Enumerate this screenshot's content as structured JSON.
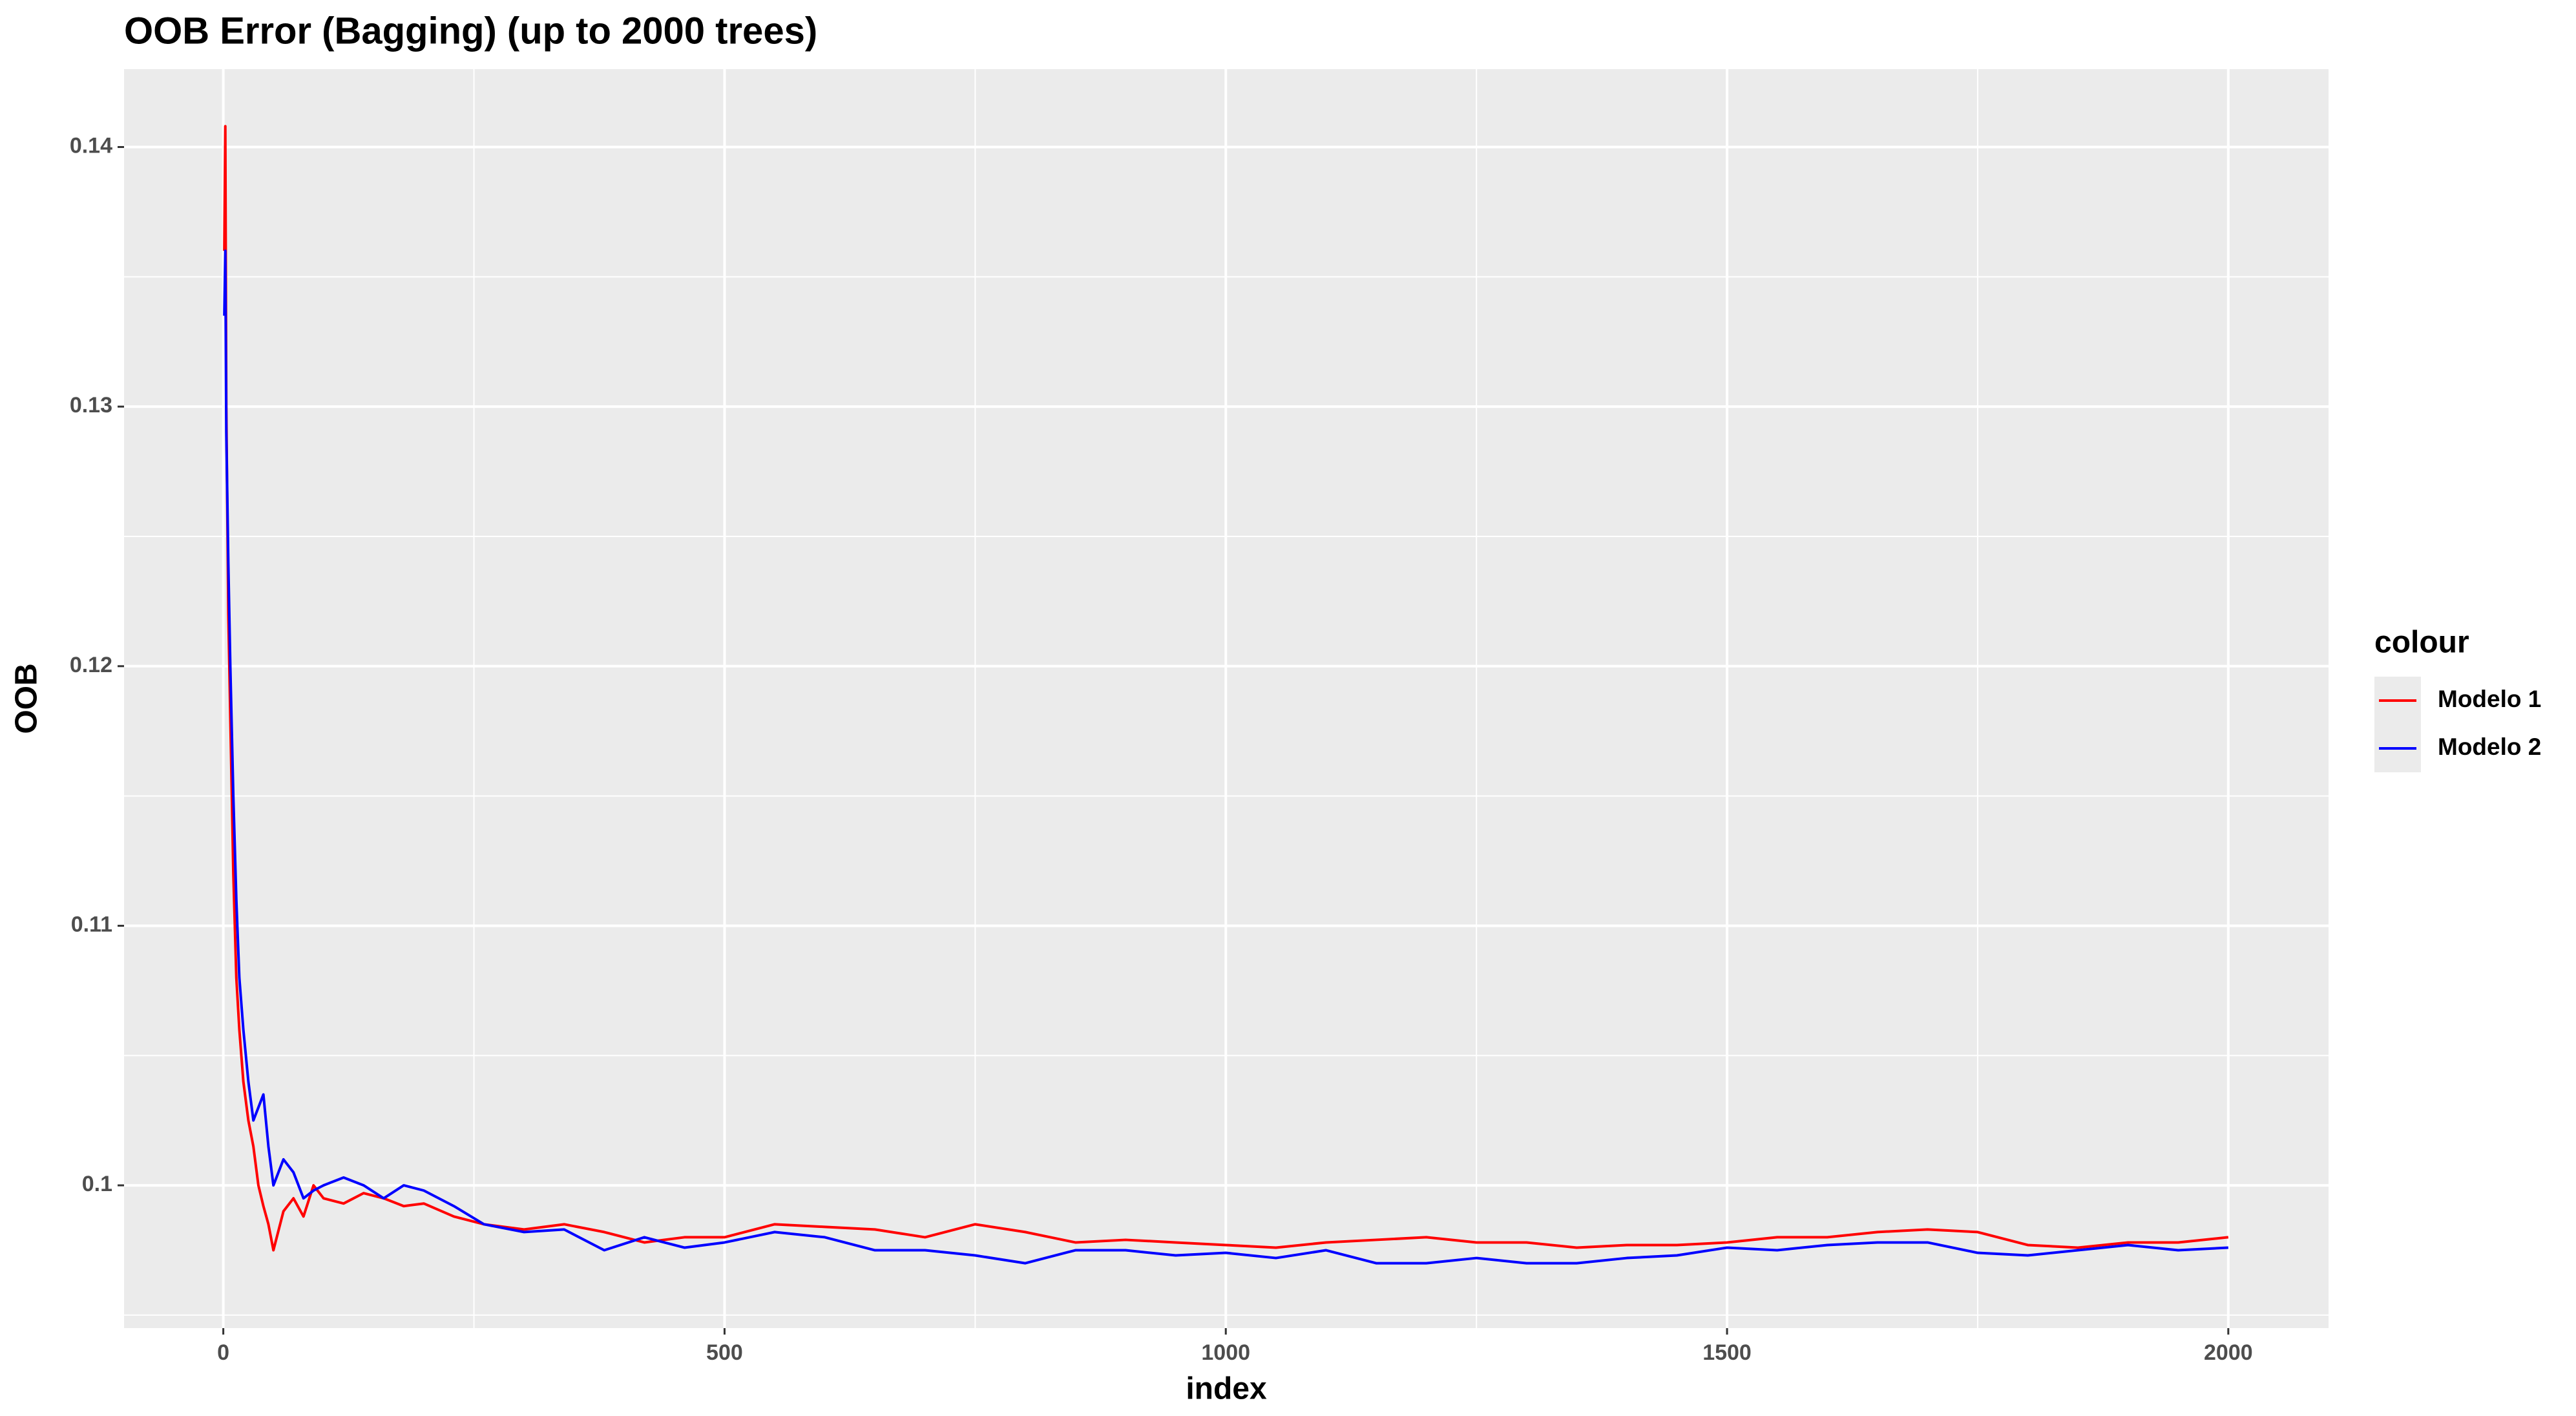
{
  "chart_data": {
    "type": "line",
    "title": "OOB Error (Bagging) (up to 2000 trees)",
    "x_label": "index",
    "y_label": "OOB",
    "legend_title": "colour",
    "legend_position": "right",
    "x": [
      1,
      2,
      3,
      5,
      7,
      10,
      13,
      16,
      20,
      25,
      30,
      35,
      40,
      45,
      50,
      60,
      70,
      80,
      90,
      100,
      120,
      140,
      160,
      180,
      200,
      230,
      260,
      300,
      340,
      380,
      420,
      460,
      500,
      550,
      600,
      650,
      700,
      750,
      800,
      850,
      900,
      950,
      1000,
      1050,
      1100,
      1150,
      1200,
      1250,
      1300,
      1350,
      1400,
      1450,
      1500,
      1550,
      1600,
      1650,
      1700,
      1750,
      1800,
      1850,
      1900,
      1950,
      2000
    ],
    "series": [
      {
        "name": "Modelo 1",
        "color": "#ff0000",
        "values": [
          0.136,
          0.1408,
          0.13,
          0.122,
          0.118,
          0.112,
          0.108,
          0.106,
          0.104,
          0.1025,
          0.1015,
          0.1,
          0.0992,
          0.0985,
          0.0975,
          0.099,
          0.0995,
          0.0988,
          0.1,
          0.0995,
          0.0993,
          0.0997,
          0.0995,
          0.0992,
          0.0993,
          0.0988,
          0.0985,
          0.0983,
          0.0985,
          0.0982,
          0.0978,
          0.098,
          0.098,
          0.0985,
          0.0984,
          0.0983,
          0.098,
          0.0985,
          0.0982,
          0.0978,
          0.0979,
          0.0978,
          0.0977,
          0.0976,
          0.0978,
          0.0979,
          0.098,
          0.0978,
          0.0978,
          0.0976,
          0.0977,
          0.0977,
          0.0978,
          0.098,
          0.098,
          0.0982,
          0.0983,
          0.0982,
          0.0977,
          0.0976,
          0.0978,
          0.0978,
          0.098
        ]
      },
      {
        "name": "Modelo 2",
        "color": "#0000ff",
        "values": [
          0.1335,
          0.136,
          0.129,
          0.124,
          0.12,
          0.115,
          0.111,
          0.108,
          0.106,
          0.104,
          0.1025,
          0.103,
          0.1035,
          0.1015,
          0.1,
          0.101,
          0.1005,
          0.0995,
          0.0998,
          0.1,
          0.1003,
          0.1,
          0.0995,
          0.1,
          0.0998,
          0.0992,
          0.0985,
          0.0982,
          0.0983,
          0.0975,
          0.098,
          0.0976,
          0.0978,
          0.0982,
          0.098,
          0.0975,
          0.0975,
          0.0973,
          0.097,
          0.0975,
          0.0975,
          0.0973,
          0.0974,
          0.0972,
          0.0975,
          0.097,
          0.097,
          0.0972,
          0.097,
          0.097,
          0.0972,
          0.0973,
          0.0976,
          0.0975,
          0.0977,
          0.0978,
          0.0978,
          0.0974,
          0.0973,
          0.0975,
          0.0977,
          0.0975,
          0.0976
        ]
      }
    ],
    "xlim": [
      -99,
      2100
    ],
    "ylim": [
      0.0945,
      0.143
    ],
    "xticks": [
      0,
      500,
      1000,
      1500,
      2000
    ],
    "yticks": [
      0.1,
      0.11,
      0.12,
      0.13,
      0.14
    ],
    "x_minor_ticks": [
      250,
      750,
      1250,
      1750
    ],
    "y_minor_ticks": [
      0.095,
      0.105,
      0.115,
      0.125,
      0.135
    ],
    "grid": true
  }
}
